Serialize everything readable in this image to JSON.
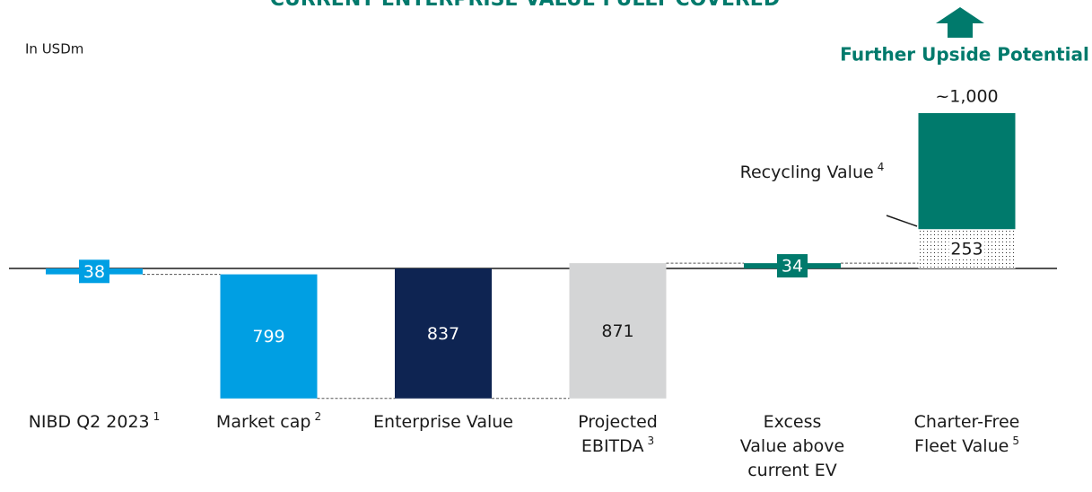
{
  "chart_data": {
    "type": "waterfall",
    "title": "CURRENT ENTERPRISE VALUE FULLY COVERED",
    "unit_note": "In USDm",
    "categories": [
      [
        "NIBD Q2 2023"
      ],
      [
        "Market cap"
      ],
      [
        "Enterprise Value"
      ],
      [
        "Projected",
        "EBITDA"
      ],
      [
        "Excess",
        "Value above",
        "current EV"
      ],
      [
        "Charter-Free",
        "Fleet Value"
      ]
    ],
    "footnotes": [
      "1",
      "2",
      null,
      "3",
      null,
      "5"
    ],
    "values": [
      38,
      799,
      837,
      871,
      34,
      253
    ],
    "colors": [
      "#009fe3",
      "#009fe3",
      "#0e2452",
      "#d4d5d6",
      "#007a6c",
      "#ffffff"
    ],
    "label_colors": [
      "#ffffff",
      "#ffffff",
      "#ffffff",
      "#1a1a1a",
      "#ffffff",
      "#1a1a1a"
    ],
    "upside": {
      "value": 1000,
      "value_label": "~1,000",
      "label": "Further Upside Potential",
      "color": "#007a6c"
    },
    "annotation": {
      "text": "Recycling Value",
      "footnote": "4"
    }
  }
}
